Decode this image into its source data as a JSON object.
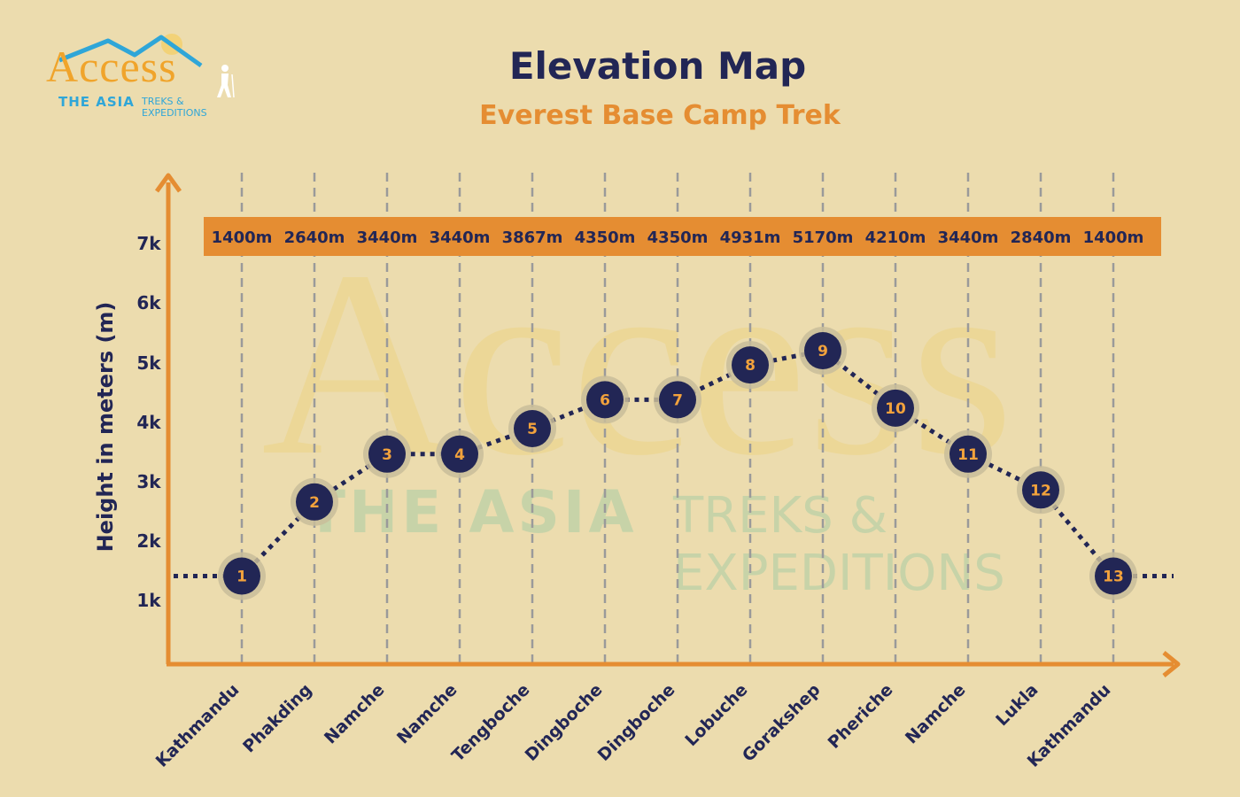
{
  "logo": {
    "word": "Access",
    "sub1": "THE ASIA",
    "sub2": "TREKS & EXPEDITIONS",
    "icon": "hiker-icon",
    "colors": {
      "orange": "#f0a42b",
      "blue": "#2fa6d8"
    }
  },
  "header": {
    "title": "Elevation Map",
    "subtitle": "Everest Base Camp Trek"
  },
  "colors": {
    "background": "#ecdcae",
    "axis": "#e58d32",
    "navy": "#222655",
    "label_band": "#e58d32",
    "marker_number": "#f2a23c",
    "gridline": "#9a9a9a"
  },
  "chart_data": {
    "type": "line",
    "title": "Elevation Map",
    "subtitle": "Everest Base Camp Trek",
    "ylabel": "Height in meters (m)",
    "yticks": [
      "1k",
      "2k",
      "3k",
      "4k",
      "5k",
      "6k",
      "7k"
    ],
    "categories": [
      "Kathmandu",
      "Phakding",
      "Namche",
      "Namche",
      "Tengboche",
      "Dingboche",
      "Dingboche",
      "Lobuche",
      "Gorakshep",
      "Pheriche",
      "Namche",
      "Lukla",
      "Kathmandu"
    ],
    "markers": [
      "1",
      "2",
      "3",
      "4",
      "5",
      "6",
      "7",
      "8",
      "9",
      "10",
      "11",
      "12",
      "13"
    ],
    "elevation_labels": [
      "1400m",
      "2640m",
      "3440m",
      "3440m",
      "3867m",
      "4350m",
      "4350m",
      "4931m",
      "5170m",
      "4210m",
      "3440m",
      "2840m",
      "1400m"
    ],
    "values": [
      1400,
      2640,
      3440,
      3440,
      3867,
      4350,
      4350,
      4931,
      5170,
      4210,
      3440,
      2840,
      1400
    ],
    "grid": "vertical dashed",
    "line_style": "dotted"
  }
}
